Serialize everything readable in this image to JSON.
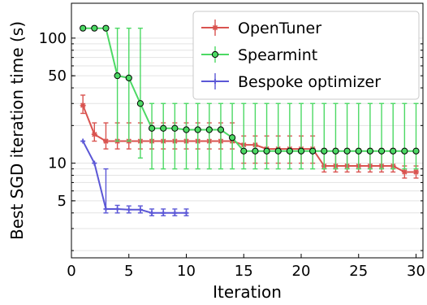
{
  "chart_data": {
    "type": "line",
    "xlabel": "Iteration",
    "ylabel": "Best SGD iteration time (s)",
    "xlim": [
      0,
      30.6
    ],
    "ylim": [
      1.75,
      190
    ],
    "yscale": "log",
    "xticks": [
      0,
      5,
      10,
      15,
      20,
      25,
      30
    ],
    "yticks": [
      5,
      10,
      50,
      100
    ],
    "grid": "horizontal",
    "legend_position": "top-right",
    "series": [
      {
        "name": "OpenTuner",
        "color": "#d9534f",
        "marker": "star",
        "x": [
          1,
          2,
          3,
          4,
          5,
          6,
          7,
          8,
          9,
          10,
          11,
          12,
          13,
          14,
          15,
          16,
          17,
          18,
          19,
          20,
          21,
          22,
          23,
          24,
          25,
          26,
          27,
          28,
          29,
          30
        ],
        "y": [
          29,
          17,
          15,
          15,
          15,
          15,
          15,
          15,
          15,
          15,
          15,
          15,
          15,
          15,
          14,
          14,
          13,
          13,
          13,
          13,
          13,
          9.5,
          9.5,
          9.5,
          9.5,
          9.5,
          9.5,
          9.5,
          8.5,
          8.5
        ],
        "yerr_low": [
          25,
          15,
          13,
          13,
          13,
          13,
          13,
          13,
          13,
          13,
          13,
          13,
          13,
          13,
          10,
          10,
          10,
          10,
          10,
          10,
          10,
          8.5,
          8.5,
          8.5,
          8.5,
          8.5,
          8.5,
          8.5,
          7.6,
          7.6
        ],
        "yerr_high": [
          35,
          21,
          21,
          21,
          21,
          21,
          21,
          21,
          21,
          21,
          21,
          21,
          21,
          21,
          16.5,
          16.5,
          16.5,
          16.5,
          16.5,
          16.5,
          16.5,
          13,
          13,
          13,
          13,
          13,
          13,
          13,
          9.5,
          9.5
        ]
      },
      {
        "name": "Spearmint",
        "color": "#4cd964",
        "marker": "circle",
        "x": [
          1,
          2,
          3,
          4,
          5,
          6,
          7,
          8,
          9,
          10,
          11,
          12,
          13,
          14,
          15,
          16,
          17,
          18,
          19,
          20,
          21,
          22,
          23,
          24,
          25,
          26,
          27,
          28,
          29,
          30
        ],
        "y": [
          120,
          120,
          120,
          50,
          48,
          30,
          19,
          19,
          19,
          18.5,
          18.5,
          18.5,
          18.5,
          16,
          12.5,
          12.5,
          12.5,
          12.5,
          12.5,
          12.5,
          12.5,
          12.5,
          12.5,
          12.5,
          12.5,
          12.5,
          12.5,
          12.5,
          12.5,
          12.5
        ],
        "yerr_low": [
          120,
          120,
          120,
          15,
          15,
          11,
          9,
          9,
          9,
          9,
          9,
          9,
          9,
          9,
          9,
          9,
          9,
          9,
          9,
          9,
          9,
          9,
          9,
          9,
          9,
          9,
          9,
          9,
          9,
          9
        ],
        "yerr_high": [
          120,
          120,
          120,
          120,
          120,
          120,
          30,
          30,
          30,
          30,
          30,
          30,
          30,
          30,
          30,
          30,
          30,
          30,
          30,
          30,
          30,
          30,
          30,
          30,
          30,
          30,
          30,
          30,
          30,
          30
        ]
      },
      {
        "name": "Bespoke optimizer",
        "color": "#5b57d6",
        "marker": "plus",
        "x": [
          1,
          2,
          3,
          4,
          5,
          6,
          7,
          8,
          9,
          10
        ],
        "y": [
          15,
          10,
          4.3,
          4.3,
          4.25,
          4.25,
          4.0,
          4.0,
          4.0,
          4.0
        ],
        "yerr_low": [
          15,
          10,
          4.0,
          4.0,
          4.0,
          4.0,
          3.8,
          3.8,
          3.8,
          3.8
        ],
        "yerr_high": [
          15,
          10,
          9,
          4.6,
          4.55,
          4.55,
          4.3,
          4.3,
          4.3,
          4.3
        ]
      }
    ]
  }
}
